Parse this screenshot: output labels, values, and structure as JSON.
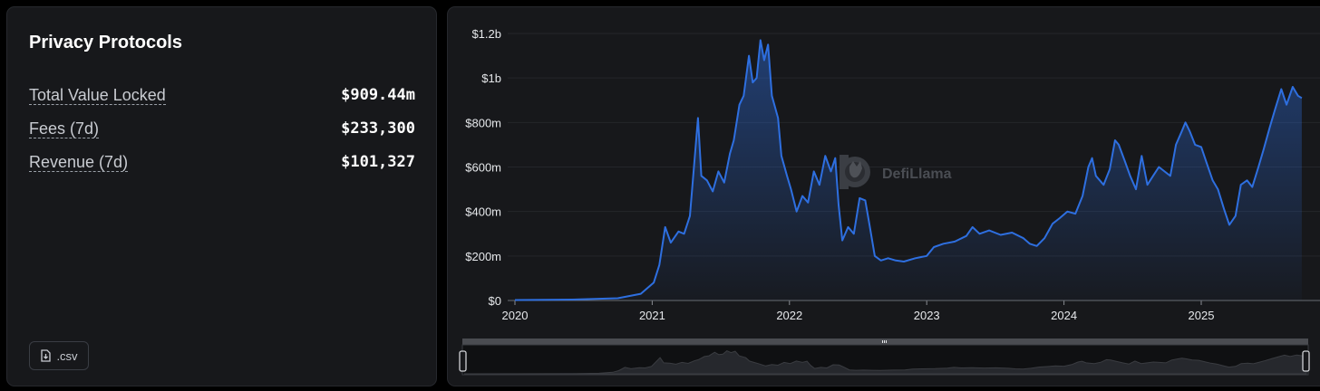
{
  "left": {
    "title": "Privacy Protocols",
    "stats": [
      {
        "label": "Total Value Locked",
        "value": "$909.44m"
      },
      {
        "label": "Fees (7d)",
        "value": "$233,300"
      },
      {
        "label": "Revenue (7d)",
        "value": "$101,327"
      }
    ],
    "csv_label": ".csv",
    "csv_icon": "download-file-icon"
  },
  "watermark": "DefiLlama",
  "colors": {
    "background": "#000000",
    "panel": "#17181b",
    "line": "#2e6fe0",
    "gridline": "#24262b"
  },
  "chart_data": {
    "type": "area",
    "y_ticks": [
      "$0",
      "$200m",
      "$400m",
      "$600m",
      "$800m",
      "$1b",
      "$1.2b"
    ],
    "x_ticks": [
      "2020",
      "2021",
      "2022",
      "2023",
      "2024",
      "2025"
    ],
    "ylim": [
      0,
      1200
    ],
    "y_unit": "millions USD",
    "series": [
      {
        "points": [
          [
            "2020-01",
            2
          ],
          [
            "2020-06",
            4
          ],
          [
            "2020-10",
            10
          ],
          [
            "2020-12",
            30
          ],
          [
            "2021-01-05",
            80
          ],
          [
            "2021-01-20",
            160
          ],
          [
            "2021-02-05",
            330
          ],
          [
            "2021-02-20",
            260
          ],
          [
            "2021-03-10",
            310
          ],
          [
            "2021-03-25",
            300
          ],
          [
            "2021-04-10",
            380
          ],
          [
            "2021-05-01",
            820
          ],
          [
            "2021-05-10",
            560
          ],
          [
            "2021-05-25",
            540
          ],
          [
            "2021-06-10",
            490
          ],
          [
            "2021-06-25",
            580
          ],
          [
            "2021-07-10",
            530
          ],
          [
            "2021-07-25",
            660
          ],
          [
            "2021-08-05",
            720
          ],
          [
            "2021-08-20",
            880
          ],
          [
            "2021-09-01",
            920
          ],
          [
            "2021-09-15",
            1100
          ],
          [
            "2021-09-25",
            980
          ],
          [
            "2021-10-05",
            1000
          ],
          [
            "2021-10-15",
            1170
          ],
          [
            "2021-10-25",
            1080
          ],
          [
            "2021-11-05",
            1150
          ],
          [
            "2021-11-15",
            920
          ],
          [
            "2021-12-01",
            820
          ],
          [
            "2021-12-10",
            650
          ],
          [
            "2021-12-25",
            560
          ],
          [
            "2022-01-05",
            500
          ],
          [
            "2022-01-20",
            400
          ],
          [
            "2022-02-05",
            470
          ],
          [
            "2022-02-20",
            440
          ],
          [
            "2022-03-05",
            580
          ],
          [
            "2022-03-20",
            520
          ],
          [
            "2022-04-05",
            650
          ],
          [
            "2022-04-20",
            580
          ],
          [
            "2022-05-01",
            640
          ],
          [
            "2022-05-10",
            430
          ],
          [
            "2022-05-20",
            270
          ],
          [
            "2022-06-05",
            330
          ],
          [
            "2022-06-20",
            300
          ],
          [
            "2022-07-05",
            460
          ],
          [
            "2022-07-20",
            450
          ],
          [
            "2022-08-01",
            340
          ],
          [
            "2022-08-15",
            200
          ],
          [
            "2022-09-01",
            180
          ],
          [
            "2022-09-20",
            190
          ],
          [
            "2022-10-10",
            180
          ],
          [
            "2022-11-01",
            175
          ],
          [
            "2022-12-01",
            190
          ],
          [
            "2023-01-01",
            200
          ],
          [
            "2023-01-20",
            240
          ],
          [
            "2023-02-15",
            255
          ],
          [
            "2023-03-15",
            265
          ],
          [
            "2023-04-15",
            290
          ],
          [
            "2023-05-01",
            330
          ],
          [
            "2023-05-20",
            300
          ],
          [
            "2023-06-15",
            315
          ],
          [
            "2023-07-15",
            295
          ],
          [
            "2023-08-15",
            305
          ],
          [
            "2023-09-15",
            280
          ],
          [
            "2023-10-01",
            255
          ],
          [
            "2023-10-20",
            245
          ],
          [
            "2023-11-10",
            280
          ],
          [
            "2023-12-01",
            345
          ],
          [
            "2023-12-20",
            370
          ],
          [
            "2024-01-10",
            400
          ],
          [
            "2024-02-01",
            390
          ],
          [
            "2024-02-20",
            470
          ],
          [
            "2024-03-05",
            600
          ],
          [
            "2024-03-15",
            640
          ],
          [
            "2024-03-25",
            560
          ],
          [
            "2024-04-15",
            520
          ],
          [
            "2024-05-01",
            590
          ],
          [
            "2024-05-15",
            720
          ],
          [
            "2024-05-25",
            700
          ],
          [
            "2024-06-10",
            630
          ],
          [
            "2024-06-25",
            560
          ],
          [
            "2024-07-10",
            500
          ],
          [
            "2024-07-25",
            650
          ],
          [
            "2024-08-10",
            520
          ],
          [
            "2024-08-25",
            560
          ],
          [
            "2024-09-10",
            600
          ],
          [
            "2024-09-25",
            580
          ],
          [
            "2024-10-10",
            560
          ],
          [
            "2024-10-25",
            700
          ],
          [
            "2024-11-10",
            760
          ],
          [
            "2024-11-20",
            800
          ],
          [
            "2024-12-01",
            760
          ],
          [
            "2024-12-15",
            700
          ],
          [
            "2025-01-01",
            690
          ],
          [
            "2025-01-15",
            620
          ],
          [
            "2025-02-01",
            540
          ],
          [
            "2025-02-15",
            500
          ],
          [
            "2025-03-01",
            410
          ],
          [
            "2025-03-15",
            340
          ],
          [
            "2025-04-01",
            380
          ],
          [
            "2025-04-15",
            520
          ],
          [
            "2025-05-01",
            540
          ],
          [
            "2025-05-15",
            510
          ],
          [
            "2025-06-01",
            600
          ],
          [
            "2025-06-15",
            680
          ],
          [
            "2025-07-01",
            780
          ],
          [
            "2025-07-15",
            860
          ],
          [
            "2025-08-01",
            950
          ],
          [
            "2025-08-15",
            880
          ],
          [
            "2025-09-01",
            960
          ],
          [
            "2025-09-15",
            920
          ],
          [
            "2025-09-25",
            910
          ]
        ]
      }
    ],
    "grid": true
  }
}
